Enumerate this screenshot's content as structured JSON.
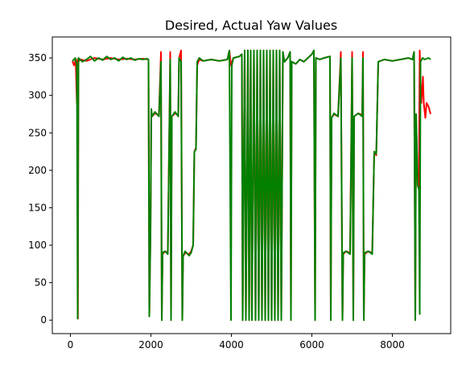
{
  "chart_data": {
    "type": "line",
    "title": "Desired, Actual Yaw Values",
    "xlabel": "",
    "ylabel": "",
    "xlim": [
      -450,
      9450
    ],
    "ylim": [
      -18,
      378
    ],
    "x_ticks": [
      0,
      2000,
      4000,
      6000,
      8000
    ],
    "x_tick_labels": [
      "0",
      "2000",
      "4000",
      "6000",
      "8000"
    ],
    "y_ticks": [
      0,
      50,
      100,
      150,
      200,
      250,
      300,
      350
    ],
    "y_tick_labels": [
      "0",
      "50",
      "100",
      "150",
      "200",
      "250",
      "300",
      "350"
    ],
    "grid": false,
    "legend": "none",
    "series": [
      {
        "color": "#ff0000",
        "points": [
          [
            50,
            346
          ],
          [
            90,
            340
          ],
          [
            130,
            348
          ],
          [
            160,
            290
          ],
          [
            175,
            348
          ],
          [
            185,
            2
          ],
          [
            200,
            345
          ],
          [
            250,
            348
          ],
          [
            400,
            346
          ],
          [
            600,
            350
          ],
          [
            800,
            348
          ],
          [
            1000,
            350
          ],
          [
            1200,
            348
          ],
          [
            1400,
            349
          ],
          [
            1600,
            348
          ],
          [
            1800,
            349
          ],
          [
            1940,
            348
          ],
          [
            1960,
            5
          ],
          [
            1990,
            115
          ],
          [
            2010,
            280
          ],
          [
            2030,
            272
          ],
          [
            2100,
            276
          ],
          [
            2200,
            274
          ],
          [
            2250,
            358
          ],
          [
            2270,
            0
          ],
          [
            2290,
            88
          ],
          [
            2350,
            92
          ],
          [
            2420,
            90
          ],
          [
            2480,
            358
          ],
          [
            2500,
            0
          ],
          [
            2520,
            272
          ],
          [
            2600,
            276
          ],
          [
            2680,
            274
          ],
          [
            2700,
            350
          ],
          [
            2750,
            360
          ],
          [
            2780,
            0
          ],
          [
            2800,
            85
          ],
          [
            2850,
            90
          ],
          [
            2950,
            88
          ],
          [
            3000,
            92
          ],
          [
            3050,
            100
          ],
          [
            3080,
            225
          ],
          [
            3120,
            230
          ],
          [
            3150,
            340
          ],
          [
            3200,
            348
          ],
          [
            3300,
            346
          ],
          [
            3500,
            348
          ],
          [
            3700,
            346
          ],
          [
            3900,
            348
          ],
          [
            3950,
            360
          ],
          [
            3990,
            340
          ],
          [
            4050,
            350
          ],
          [
            4200,
            352
          ],
          [
            4260,
            355
          ],
          [
            4280,
            0
          ],
          [
            4330,
            360
          ],
          [
            4360,
            0
          ],
          [
            4410,
            360
          ],
          [
            4440,
            0
          ],
          [
            4480,
            360
          ],
          [
            4510,
            0
          ],
          [
            4560,
            360
          ],
          [
            4600,
            0
          ],
          [
            4640,
            360
          ],
          [
            4680,
            0
          ],
          [
            4720,
            360
          ],
          [
            4760,
            0
          ],
          [
            4800,
            360
          ],
          [
            4840,
            0
          ],
          [
            4880,
            360
          ],
          [
            4920,
            0
          ],
          [
            4960,
            360
          ],
          [
            5000,
            0
          ],
          [
            5040,
            360
          ],
          [
            5080,
            0
          ],
          [
            5120,
            360
          ],
          [
            5160,
            0
          ],
          [
            5200,
            360
          ],
          [
            5240,
            0
          ],
          [
            5280,
            358
          ],
          [
            5320,
            345
          ],
          [
            5400,
            350
          ],
          [
            5460,
            358
          ],
          [
            5480,
            0
          ],
          [
            5500,
            345
          ],
          [
            5600,
            342
          ],
          [
            5700,
            348
          ],
          [
            5800,
            345
          ],
          [
            5900,
            350
          ],
          [
            6000,
            355
          ],
          [
            6050,
            360
          ],
          [
            6080,
            0
          ],
          [
            6100,
            350
          ],
          [
            6200,
            348
          ],
          [
            6300,
            350
          ],
          [
            6450,
            352
          ],
          [
            6470,
            0
          ],
          [
            6490,
            270
          ],
          [
            6550,
            275
          ],
          [
            6650,
            272
          ],
          [
            6720,
            358
          ],
          [
            6760,
            0
          ],
          [
            6780,
            88
          ],
          [
            6850,
            92
          ],
          [
            6950,
            90
          ],
          [
            7000,
            358
          ],
          [
            7030,
            0
          ],
          [
            7050,
            272
          ],
          [
            7150,
            276
          ],
          [
            7250,
            274
          ],
          [
            7270,
            358
          ],
          [
            7290,
            0
          ],
          [
            7310,
            88
          ],
          [
            7400,
            92
          ],
          [
            7500,
            90
          ],
          [
            7550,
            225
          ],
          [
            7600,
            220
          ],
          [
            7650,
            345
          ],
          [
            7800,
            348
          ],
          [
            8000,
            346
          ],
          [
            8200,
            348
          ],
          [
            8400,
            350
          ],
          [
            8500,
            348
          ],
          [
            8540,
            358
          ],
          [
            8570,
            0
          ],
          [
            8590,
            275
          ],
          [
            8630,
            180
          ],
          [
            8660,
            175
          ],
          [
            8680,
            360
          ],
          [
            8700,
            320
          ],
          [
            8720,
            290
          ],
          [
            8760,
            325
          ],
          [
            8780,
            290
          ],
          [
            8820,
            270
          ],
          [
            8850,
            290
          ],
          [
            8900,
            285
          ],
          [
            8950,
            275
          ]
        ]
      },
      {
        "color": "#008000",
        "points": [
          [
            50,
            346
          ],
          [
            90,
            348
          ],
          [
            120,
            350
          ],
          [
            160,
            340
          ],
          [
            180,
            2
          ],
          [
            200,
            350
          ],
          [
            300,
            345
          ],
          [
            400,
            348
          ],
          [
            500,
            352
          ],
          [
            600,
            346
          ],
          [
            700,
            350
          ],
          [
            800,
            347
          ],
          [
            900,
            352
          ],
          [
            1000,
            348
          ],
          [
            1100,
            350
          ],
          [
            1200,
            346
          ],
          [
            1300,
            351
          ],
          [
            1400,
            348
          ],
          [
            1500,
            350
          ],
          [
            1600,
            347
          ],
          [
            1700,
            349
          ],
          [
            1800,
            348
          ],
          [
            1900,
            349
          ],
          [
            1940,
            348
          ],
          [
            1960,
            5
          ],
          [
            1990,
            115
          ],
          [
            2010,
            282
          ],
          [
            2030,
            272
          ],
          [
            2100,
            278
          ],
          [
            2200,
            272
          ],
          [
            2250,
            345
          ],
          [
            2270,
            0
          ],
          [
            2290,
            90
          ],
          [
            2350,
            92
          ],
          [
            2420,
            88
          ],
          [
            2480,
            348
          ],
          [
            2500,
            0
          ],
          [
            2520,
            272
          ],
          [
            2600,
            278
          ],
          [
            2680,
            272
          ],
          [
            2700,
            350
          ],
          [
            2750,
            345
          ],
          [
            2780,
            0
          ],
          [
            2800,
            85
          ],
          [
            2850,
            92
          ],
          [
            2950,
            86
          ],
          [
            3000,
            90
          ],
          [
            3050,
            100
          ],
          [
            3080,
            225
          ],
          [
            3120,
            228
          ],
          [
            3150,
            345
          ],
          [
            3200,
            350
          ],
          [
            3300,
            346
          ],
          [
            3500,
            348
          ],
          [
            3700,
            346
          ],
          [
            3900,
            348
          ],
          [
            3950,
            360
          ],
          [
            3990,
            0
          ],
          [
            4010,
            340
          ],
          [
            4050,
            350
          ],
          [
            4200,
            352
          ],
          [
            4260,
            355
          ],
          [
            4280,
            0
          ],
          [
            4330,
            360
          ],
          [
            4360,
            0
          ],
          [
            4410,
            360
          ],
          [
            4440,
            0
          ],
          [
            4480,
            360
          ],
          [
            4510,
            0
          ],
          [
            4560,
            360
          ],
          [
            4600,
            0
          ],
          [
            4640,
            360
          ],
          [
            4680,
            0
          ],
          [
            4720,
            360
          ],
          [
            4760,
            0
          ],
          [
            4800,
            360
          ],
          [
            4840,
            0
          ],
          [
            4880,
            360
          ],
          [
            4920,
            0
          ],
          [
            4960,
            360
          ],
          [
            5000,
            0
          ],
          [
            5040,
            360
          ],
          [
            5080,
            0
          ],
          [
            5120,
            360
          ],
          [
            5160,
            0
          ],
          [
            5200,
            360
          ],
          [
            5240,
            0
          ],
          [
            5280,
            358
          ],
          [
            5320,
            345
          ],
          [
            5400,
            350
          ],
          [
            5460,
            358
          ],
          [
            5480,
            0
          ],
          [
            5500,
            345
          ],
          [
            5600,
            342
          ],
          [
            5700,
            348
          ],
          [
            5800,
            345
          ],
          [
            5900,
            350
          ],
          [
            6000,
            355
          ],
          [
            6050,
            360
          ],
          [
            6080,
            0
          ],
          [
            6100,
            350
          ],
          [
            6200,
            348
          ],
          [
            6300,
            350
          ],
          [
            6450,
            352
          ],
          [
            6470,
            0
          ],
          [
            6490,
            270
          ],
          [
            6550,
            276
          ],
          [
            6650,
            272
          ],
          [
            6720,
            350
          ],
          [
            6760,
            0
          ],
          [
            6780,
            90
          ],
          [
            6850,
            92
          ],
          [
            6950,
            88
          ],
          [
            7000,
            350
          ],
          [
            7030,
            0
          ],
          [
            7050,
            272
          ],
          [
            7150,
            276
          ],
          [
            7250,
            272
          ],
          [
            7270,
            350
          ],
          [
            7290,
            0
          ],
          [
            7310,
            90
          ],
          [
            7400,
            92
          ],
          [
            7500,
            88
          ],
          [
            7550,
            225
          ],
          [
            7600,
            222
          ],
          [
            7650,
            345
          ],
          [
            7800,
            348
          ],
          [
            8000,
            346
          ],
          [
            8200,
            348
          ],
          [
            8400,
            350
          ],
          [
            8500,
            348
          ],
          [
            8540,
            358
          ],
          [
            8570,
            0
          ],
          [
            8590,
            275
          ],
          [
            8630,
            180
          ],
          [
            8660,
            175
          ],
          [
            8680,
            8
          ],
          [
            8700,
            345
          ],
          [
            8750,
            350
          ],
          [
            8800,
            348
          ],
          [
            8900,
            350
          ],
          [
            8950,
            348
          ]
        ]
      }
    ]
  }
}
